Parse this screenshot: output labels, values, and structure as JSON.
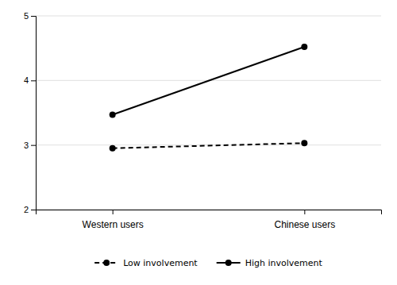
{
  "chart_data": {
    "type": "line",
    "categories": [
      "Western users",
      "Chinese users"
    ],
    "series": [
      {
        "name": "Low involvement",
        "color": "#000000",
        "line_style": "dashed",
        "marker": "circle",
        "values": [
          2.95,
          3.03
        ]
      },
      {
        "name": "High involvement",
        "color": "#000000",
        "line_style": "solid",
        "marker": "circle",
        "values": [
          3.47,
          4.52
        ]
      }
    ],
    "ylim": [
      2,
      5
    ],
    "yticks": [
      2,
      3,
      4,
      5
    ],
    "grid": true,
    "legend": "bottom"
  }
}
